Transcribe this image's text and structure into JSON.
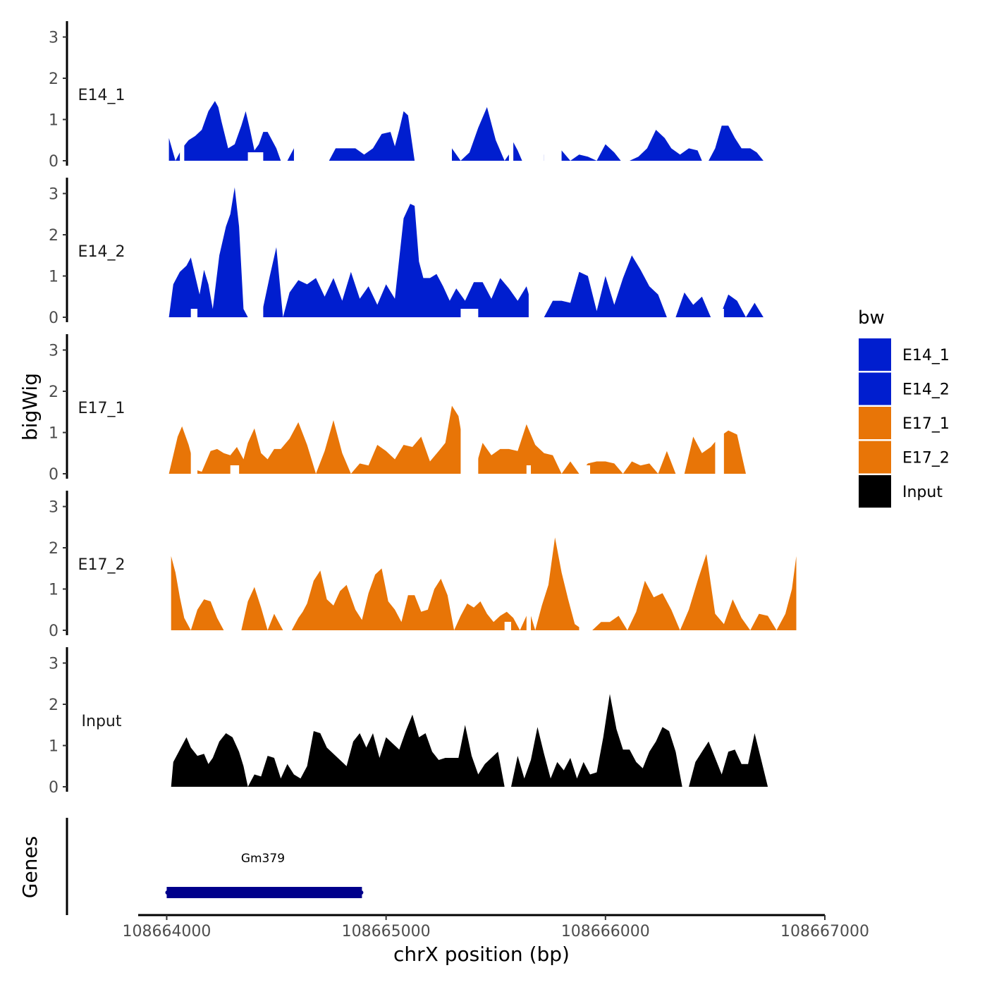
{
  "chart_data": {
    "type": "area",
    "title": "",
    "xlabel": "chrX position (bp)",
    "ylabel": "bigWig",
    "genes_label": "Genes",
    "xlim": [
      108663870,
      108667000
    ],
    "ylim": [
      0,
      3.3
    ],
    "x_ticks": [
      108664000,
      108665000,
      108666000,
      108667000
    ],
    "x_tick_labels": [
      "108664000",
      "108665000",
      "108666000",
      "108667000"
    ],
    "y_ticks": [
      0,
      1,
      2,
      3
    ],
    "y_tick_labels": [
      "0",
      "1",
      "2",
      "3"
    ],
    "legend": {
      "title": "bw",
      "position": "right",
      "entries": [
        {
          "name": "E14_1",
          "color": "#001ecf"
        },
        {
          "name": "E14_2",
          "color": "#001ecf"
        },
        {
          "name": "E17_1",
          "color": "#e87507"
        },
        {
          "name": "E17_2",
          "color": "#e87507"
        },
        {
          "name": "Input",
          "color": "#000000"
        }
      ]
    },
    "series": [
      {
        "name": "E14_1",
        "color": "#001ecf",
        "x": [
          108664010,
          108664040,
          108664070,
          108664100,
          108664130,
          108664160,
          108664190,
          108664220,
          108664235,
          108664250,
          108664280,
          108664310,
          108664340,
          108664360,
          108664380,
          108664400,
          108664420,
          108664440,
          108664460,
          108664500,
          108664520,
          108664550,
          108664580,
          108664620,
          108664660,
          108664700,
          108664740,
          108664770,
          108664800,
          108664830,
          108664860,
          108664900,
          108664940,
          108664980,
          108665020,
          108665040,
          108665060,
          108665080,
          108665100,
          108665130,
          108665160,
          108665190,
          108665220,
          108665260,
          108665300,
          108665340,
          108665380,
          108665420,
          108665460,
          108665500,
          108665540,
          108665560,
          108665580,
          108665600,
          108665620,
          108665640,
          108665680,
          108665720,
          108665760,
          108665800,
          108665840,
          108665880,
          108665920,
          108665960,
          108666000,
          108666040,
          108666070,
          108666110,
          108666150,
          108666190,
          108666230,
          108666270,
          108666300,
          108666340,
          108666380,
          108666420,
          108666440,
          108666470,
          108666500,
          108666530,
          108666560,
          108666590,
          108666620,
          108666660,
          108666690,
          108666720,
          108666750,
          108666780,
          108666820,
          108666840
        ],
        "values": [
          0.55,
          0,
          0.3,
          0.5,
          0.6,
          0.75,
          1.2,
          1.45,
          1.3,
          0.95,
          0.3,
          0.4,
          0.85,
          1.2,
          0.75,
          0.25,
          0.4,
          0.7,
          0.7,
          0.3,
          0,
          0,
          0.3,
          0,
          0,
          0,
          0,
          0.3,
          0.3,
          0.3,
          0.3,
          0.15,
          0.3,
          0.65,
          0.7,
          0.35,
          0.75,
          1.2,
          1.1,
          0,
          0,
          0,
          0,
          0,
          0.3,
          0,
          0.2,
          0.8,
          1.3,
          0.5,
          0,
          0.15,
          0.45,
          0.25,
          0,
          0,
          0,
          0.15,
          0,
          0.25,
          0,
          0.15,
          0.1,
          0,
          0.4,
          0.2,
          0,
          0,
          0.1,
          0.3,
          0.75,
          0.55,
          0.3,
          0.15,
          0.3,
          0.25,
          0,
          0,
          0.3,
          0.85,
          0.85,
          0.55,
          0.3,
          0.3,
          0.2,
          0,
          0,
          0,
          0,
          0
        ],
        "gap_regions": [
          [
            108664060,
            108664080
          ],
          [
            108664580,
            108664620
          ],
          [
            108665160,
            108665300
          ],
          [
            108665560,
            108665580
          ],
          [
            108665720,
            108665800
          ]
        ]
      },
      {
        "name": "E14_2",
        "color": "#001ecf",
        "x": [
          108664010,
          108664030,
          108664060,
          108664090,
          108664110,
          108664130,
          108664150,
          108664170,
          108664190,
          108664210,
          108664240,
          108664270,
          108664290,
          108664310,
          108664330,
          108664350,
          108664370,
          108664400,
          108664430,
          108664470,
          108664500,
          108664530,
          108664560,
          108664600,
          108664640,
          108664680,
          108664720,
          108664760,
          108664800,
          108664840,
          108664880,
          108664920,
          108664960,
          108665000,
          108665040,
          108665080,
          108665110,
          108665130,
          108665150,
          108665170,
          108665200,
          108665230,
          108665260,
          108665290,
          108665320,
          108665360,
          108665400,
          108665440,
          108665480,
          108665520,
          108665560,
          108665600,
          108665640,
          108665680,
          108665720,
          108665760,
          108665800,
          108665840,
          108665880,
          108665920,
          108665960,
          108666000,
          108666040,
          108666080,
          108666120,
          108666160,
          108666200,
          108666240,
          108666280,
          108666320,
          108666360,
          108666400,
          108666440,
          108666480,
          108666520,
          108666560,
          108666600,
          108666640,
          108666680,
          108666720,
          108666760,
          108666800,
          108666840,
          108666870
        ],
        "values": [
          0,
          0.8,
          1.1,
          1.25,
          1.45,
          1.0,
          0.55,
          1.15,
          0.8,
          0.2,
          1.5,
          2.2,
          2.5,
          3.15,
          2.2,
          0.2,
          0,
          0,
          0,
          1.0,
          1.7,
          0,
          0.6,
          0.9,
          0.8,
          0.95,
          0.5,
          0.95,
          0.4,
          1.1,
          0.45,
          0.75,
          0.3,
          0.8,
          0.45,
          2.4,
          2.75,
          2.7,
          1.35,
          0.95,
          0.95,
          1.05,
          0.75,
          0.4,
          0.7,
          0.4,
          0.85,
          0.85,
          0.45,
          0.95,
          0.7,
          0.4,
          0.75,
          0,
          0,
          0.4,
          0.4,
          0.35,
          1.1,
          1.0,
          0.15,
          1.0,
          0.3,
          0.95,
          1.5,
          1.15,
          0.75,
          0.55,
          0,
          0,
          0.6,
          0.3,
          0.5,
          0,
          0,
          0.55,
          0.4,
          0,
          0.35,
          0,
          0,
          0,
          0,
          0
        ],
        "gap_regions": [
          [
            108664370,
            108664440
          ],
          [
            108665650,
            108665720
          ]
        ]
      },
      {
        "name": "E17_1",
        "color": "#e87507",
        "x": [
          108664010,
          108664050,
          108664070,
          108664100,
          108664130,
          108664160,
          108664200,
          108664230,
          108664260,
          108664290,
          108664320,
          108664350,
          108664370,
          108664400,
          108664430,
          108664460,
          108664490,
          108664520,
          108664560,
          108664600,
          108664640,
          108664680,
          108664720,
          108664760,
          108664800,
          108664840,
          108664880,
          108664920,
          108664960,
          108665000,
          108665040,
          108665080,
          108665120,
          108665160,
          108665200,
          108665240,
          108665270,
          108665300,
          108665330,
          108665360,
          108665400,
          108665440,
          108665480,
          108665520,
          108665560,
          108665600,
          108665640,
          108665680,
          108665720,
          108665760,
          108665800,
          108665840,
          108665880,
          108665920,
          108665960,
          108666000,
          108666040,
          108666080,
          108666120,
          108666160,
          108666200,
          108666240,
          108666280,
          108666320,
          108666360,
          108666400,
          108666440,
          108666480,
          108666520,
          108666560,
          108666600,
          108666640,
          108666680,
          108666720,
          108666760,
          108666800,
          108666840,
          108666870
        ],
        "values": [
          0,
          0.9,
          1.15,
          0.7,
          0.1,
          0.05,
          0.55,
          0.6,
          0.5,
          0.45,
          0.65,
          0.35,
          0.75,
          1.1,
          0.5,
          0.35,
          0.6,
          0.6,
          0.85,
          1.25,
          0.7,
          0,
          0.55,
          1.3,
          0.5,
          0,
          0.25,
          0.2,
          0.7,
          0.55,
          0.35,
          0.7,
          0.65,
          0.9,
          0.3,
          0.55,
          0.75,
          1.65,
          1.4,
          0.45,
          0,
          0.75,
          0.45,
          0.6,
          0.6,
          0.55,
          1.2,
          0.7,
          0.5,
          0.45,
          0,
          0.3,
          0,
          0.25,
          0.3,
          0.3,
          0.25,
          0,
          0.3,
          0.2,
          0.25,
          0,
          0.55,
          0,
          0,
          0.9,
          0.5,
          0.65,
          0.9,
          1.05,
          0.95,
          0,
          0,
          0,
          0,
          0,
          0,
          0
        ],
        "gap_regions": [
          [
            108664110,
            108664140
          ],
          [
            108665340,
            108665420
          ],
          [
            108666500,
            108666540
          ]
        ]
      },
      {
        "name": "E17_2",
        "color": "#e87507",
        "x": [
          108664020,
          108664040,
          108664060,
          108664080,
          108664110,
          108664140,
          108664170,
          108664200,
          108664230,
          108664260,
          108664300,
          108664340,
          108664370,
          108664400,
          108664430,
          108664460,
          108664490,
          108664530,
          108664570,
          108664600,
          108664620,
          108664640,
          108664670,
          108664700,
          108664730,
          108664760,
          108664790,
          108664820,
          108664840,
          108664860,
          108664890,
          108664920,
          108664950,
          108664980,
          108665010,
          108665040,
          108665070,
          108665100,
          108665130,
          108665160,
          108665190,
          108665220,
          108665250,
          108665280,
          108665310,
          108665340,
          108665370,
          108665400,
          108665430,
          108665460,
          108665490,
          108665520,
          108665550,
          108665580,
          108665610,
          108665640,
          108665660,
          108665680,
          108665710,
          108665740,
          108665770,
          108665800,
          108665830,
          108665860,
          108665900,
          108665940,
          108665980,
          108666020,
          108666060,
          108666100,
          108666140,
          108666180,
          108666220,
          108666260,
          108666300,
          108666340,
          108666380,
          108666420,
          108666460,
          108666500,
          108666540,
          108666580,
          108666620,
          108666660,
          108666700,
          108666740,
          108666780,
          108666820,
          108666850,
          108666870
        ],
        "values": [
          1.8,
          1.4,
          0.8,
          0.3,
          0,
          0.5,
          0.75,
          0.7,
          0.3,
          0,
          0,
          0,
          0.7,
          1.05,
          0.55,
          0,
          0.4,
          0,
          0,
          0.3,
          0.45,
          0.65,
          1.2,
          1.45,
          0.75,
          0.6,
          0.95,
          1.1,
          0.8,
          0.5,
          0.25,
          0.9,
          1.35,
          1.5,
          0.7,
          0.5,
          0.2,
          0.85,
          0.85,
          0.45,
          0.5,
          1.0,
          1.25,
          0.85,
          0,
          0.35,
          0.65,
          0.55,
          0.7,
          0.4,
          0.2,
          0.35,
          0.45,
          0.3,
          0,
          0.35,
          0.35,
          0,
          0.6,
          1.1,
          2.25,
          1.4,
          0.75,
          0.15,
          0,
          0,
          0.2,
          0.2,
          0.35,
          0,
          0.45,
          1.2,
          0.8,
          0.9,
          0.5,
          0,
          0.5,
          1.2,
          1.85,
          0.4,
          0.15,
          0.75,
          0.3,
          0,
          0.4,
          0.35,
          0,
          0.4,
          1.0,
          1.8
        ],
        "gap_regions": [
          [
            108664290,
            108664330
          ],
          [
            108665640,
            108665660
          ],
          [
            108665880,
            108665930
          ]
        ]
      },
      {
        "name": "Input",
        "color": "#000000",
        "x": [
          108664020,
          108664030,
          108664060,
          108664090,
          108664110,
          108664140,
          108664170,
          108664190,
          108664210,
          108664240,
          108664270,
          108664300,
          108664330,
          108664350,
          108664370,
          108664400,
          108664430,
          108664460,
          108664490,
          108664520,
          108664550,
          108664580,
          108664610,
          108664640,
          108664670,
          108664700,
          108664730,
          108664760,
          108664790,
          108664820,
          108664850,
          108664880,
          108664910,
          108664940,
          108664970,
          108665000,
          108665030,
          108665060,
          108665090,
          108665120,
          108665150,
          108665180,
          108665210,
          108665240,
          108665270,
          108665300,
          108665330,
          108665360,
          108665390,
          108665420,
          108665450,
          108665480,
          108665510,
          108665540,
          108665570,
          108665600,
          108665630,
          108665660,
          108665690,
          108665720,
          108665750,
          108665780,
          108665810,
          108665840,
          108665870,
          108665900,
          108665930,
          108665960,
          108665990,
          108666020,
          108666050,
          108666080,
          108666110,
          108666140,
          108666170,
          108666200,
          108666230,
          108666260,
          108666290,
          108666320,
          108666350,
          108666380,
          108666410,
          108666440,
          108666470,
          108666500,
          108666530,
          108666560,
          108666590,
          108666620,
          108666650,
          108666680,
          108666710,
          108666740,
          108666770,
          108666800,
          108666830,
          108666850,
          108666870
        ],
        "values": [
          0,
          0.6,
          0.9,
          1.2,
          0.95,
          0.75,
          0.8,
          0.55,
          0.7,
          1.1,
          1.3,
          1.2,
          0.85,
          0.5,
          0,
          0.3,
          0.25,
          0.75,
          0.7,
          0.2,
          0.55,
          0.3,
          0.2,
          0.5,
          1.35,
          1.3,
          0.95,
          0.8,
          0.65,
          0.5,
          1.1,
          1.3,
          0.95,
          1.3,
          0.7,
          1.2,
          1.05,
          0.9,
          1.35,
          1.75,
          1.2,
          1.3,
          0.85,
          0.65,
          0.7,
          0.7,
          0.7,
          1.5,
          0.75,
          0.3,
          0.55,
          0.7,
          0.85,
          0,
          0,
          0.75,
          0.2,
          0.65,
          1.45,
          0.8,
          0.2,
          0.6,
          0.4,
          0.7,
          0.2,
          0.6,
          0.3,
          0.35,
          1.2,
          2.25,
          1.4,
          0.9,
          0.9,
          0.6,
          0.45,
          0.85,
          1.1,
          1.45,
          1.35,
          0.85,
          0,
          0,
          0.6,
          0.85,
          1.1,
          0.7,
          0.3,
          0.85,
          0.9,
          0.55,
          0.55,
          1.3,
          0.65,
          0,
          0,
          0,
          0,
          0,
          0
        ],
        "gap_regions": [
          [
            108665540,
            108665570
          ]
        ]
      }
    ],
    "genes": [
      {
        "name": "Gm379",
        "start": 108664000,
        "end": 108664890,
        "color": "#00008b"
      }
    ]
  }
}
